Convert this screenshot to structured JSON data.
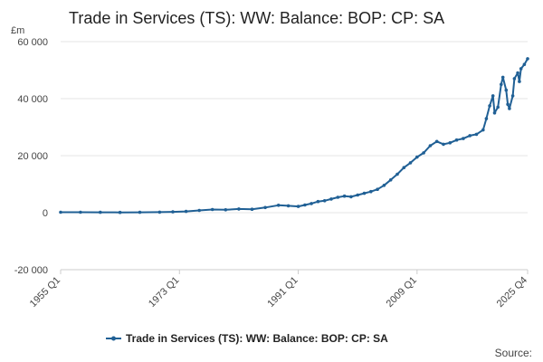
{
  "chart_data": {
    "type": "line",
    "title": "Trade in Services (TS): WW: Balance: BOP: CP: SA",
    "unit_label": "£m",
    "y_ticks": [
      "60 000",
      "40 000",
      "20 000",
      "0",
      "-20 000"
    ],
    "x_ticks": [
      "1955 Q1",
      "1973 Q1",
      "1991 Q1",
      "2009 Q1",
      "2025 Q4"
    ],
    "ylim": [
      -20000,
      60000
    ],
    "xlim": [
      1955.0,
      2025.75
    ],
    "grid": true,
    "legend_position": "bottom",
    "series": [
      {
        "name": "Trade in Services (TS): WW: Balance: BOP: CP: SA",
        "color": "#206095",
        "points": [
          [
            1955.0,
            150
          ],
          [
            1958.0,
            160
          ],
          [
            1961.0,
            140
          ],
          [
            1964.0,
            100
          ],
          [
            1967.0,
            120
          ],
          [
            1970.0,
            200
          ],
          [
            1972.0,
            280
          ],
          [
            1974.0,
            450
          ],
          [
            1976.0,
            800
          ],
          [
            1978.0,
            1100
          ],
          [
            1980.0,
            1000
          ],
          [
            1982.0,
            1300
          ],
          [
            1984.0,
            1200
          ],
          [
            1986.0,
            1800
          ],
          [
            1988.0,
            2600
          ],
          [
            1989.5,
            2400
          ],
          [
            1991.0,
            2200
          ],
          [
            1992.0,
            2700
          ],
          [
            1993.0,
            3200
          ],
          [
            1994.0,
            3900
          ],
          [
            1995.0,
            4200
          ],
          [
            1996.0,
            4800
          ],
          [
            1997.0,
            5400
          ],
          [
            1998.0,
            5800
          ],
          [
            1999.0,
            5600
          ],
          [
            2000.0,
            6200
          ],
          [
            2001.0,
            6800
          ],
          [
            2002.0,
            7400
          ],
          [
            2003.0,
            8200
          ],
          [
            2004.0,
            9600
          ],
          [
            2005.0,
            11500
          ],
          [
            2006.0,
            13500
          ],
          [
            2007.0,
            15800
          ],
          [
            2008.0,
            17500
          ],
          [
            2009.0,
            19500
          ],
          [
            2010.0,
            21000
          ],
          [
            2011.0,
            23500
          ],
          [
            2012.0,
            25000
          ],
          [
            2013.0,
            24000
          ],
          [
            2014.0,
            24500
          ],
          [
            2015.0,
            25500
          ],
          [
            2016.0,
            26000
          ],
          [
            2017.0,
            27000
          ],
          [
            2018.0,
            27500
          ],
          [
            2019.0,
            29000
          ],
          [
            2019.5,
            33000
          ],
          [
            2020.0,
            37500
          ],
          [
            2020.5,
            41000
          ],
          [
            2020.75,
            35000
          ],
          [
            2021.25,
            37000
          ],
          [
            2021.75,
            45000
          ],
          [
            2022.0,
            47500
          ],
          [
            2022.5,
            43000
          ],
          [
            2022.75,
            38000
          ],
          [
            2023.0,
            36500
          ],
          [
            2023.5,
            41000
          ],
          [
            2023.75,
            47000
          ],
          [
            2024.25,
            49000
          ],
          [
            2024.5,
            46000
          ],
          [
            2024.75,
            50500
          ],
          [
            2025.25,
            52000
          ],
          [
            2025.75,
            54000
          ]
        ]
      }
    ]
  },
  "source_label": "Source:"
}
